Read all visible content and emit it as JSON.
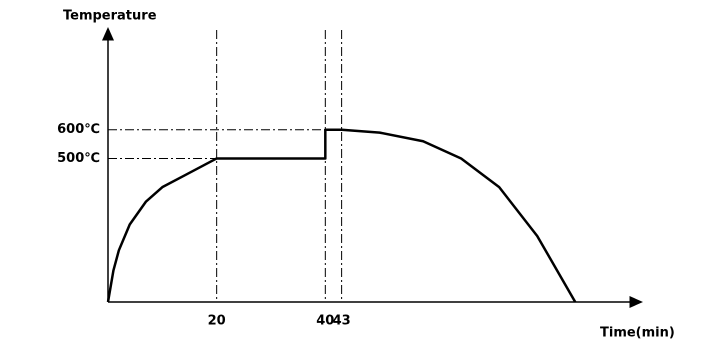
{
  "chart_data": {
    "type": "line",
    "ylabel": "Temperature",
    "xlabel": "Time(min)",
    "x": [
      0,
      1,
      2,
      4,
      7,
      10,
      14,
      20,
      40,
      40,
      43,
      50,
      58,
      65,
      72,
      79,
      86
    ],
    "series": [
      {
        "name": "Temperature",
        "color": "#000000",
        "values": [
          0,
          110,
          180,
          270,
          350,
          400,
          440,
          500,
          500,
          600,
          600,
          590,
          560,
          500,
          400,
          230,
          0
        ]
      }
    ],
    "xlim": [
      0,
      97
    ],
    "ylim": [
      0,
      930
    ],
    "xticks": [
      20,
      40,
      43
    ],
    "yticks": [
      {
        "value": 500,
        "label": "500℃"
      },
      {
        "value": 600,
        "label": "600℃"
      }
    ]
  }
}
